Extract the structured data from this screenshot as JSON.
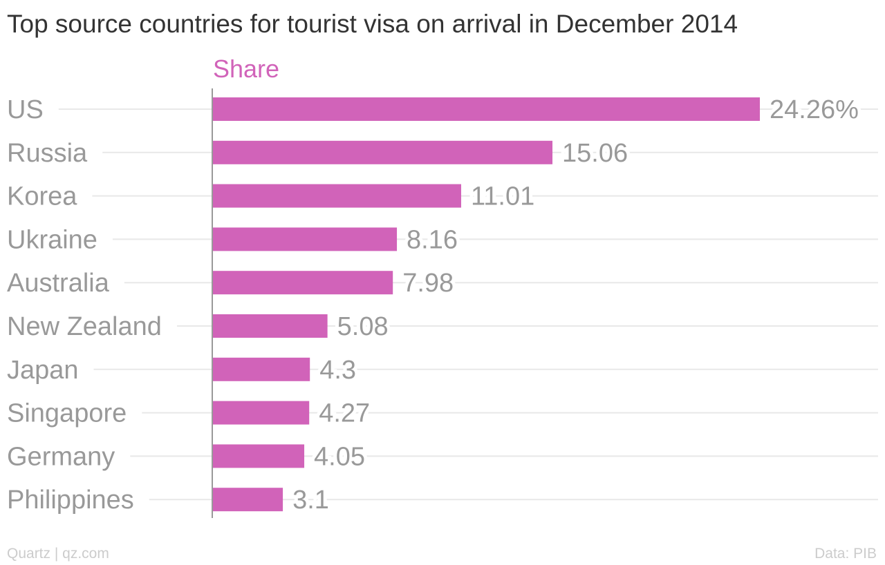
{
  "chart_data": {
    "type": "bar",
    "orientation": "horizontal",
    "title": "Top source countries for tourist visa on arrival in December 2014",
    "series": [
      {
        "name": "Share",
        "values": [
          24.26,
          15.06,
          11.01,
          8.16,
          7.98,
          5.08,
          4.3,
          4.27,
          4.05,
          3.1
        ],
        "labels": [
          "24.26%",
          "15.06",
          "11.01",
          "8.16",
          "7.98",
          "5.08",
          "4.3",
          "4.27",
          "4.05",
          "3.1"
        ]
      }
    ],
    "categories": [
      "US",
      "Russia",
      "Korea",
      "Ukraine",
      "Australia",
      "New Zealand",
      "Japan",
      "Singapore",
      "Germany",
      "Philippines"
    ],
    "xlim": [
      0,
      24.26
    ],
    "grid": true,
    "colors": {
      "bar": "#d163b9",
      "grid": "#e8e8e8",
      "text": "#999999",
      "axis": "#999999"
    }
  },
  "footer": {
    "source_left": "Quartz | qz.com",
    "source_right": "Data: PIB"
  }
}
